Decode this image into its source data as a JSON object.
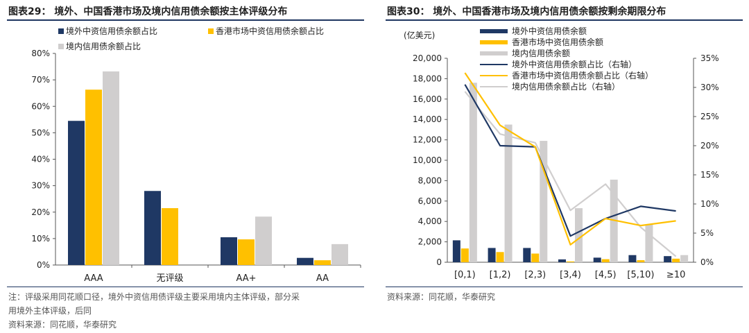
{
  "colors": {
    "navy": "#1f3864",
    "gold": "#ffc000",
    "gray": "#d0cece",
    "axis": "#555555",
    "rule": "#1e3560"
  },
  "left": {
    "title": "图表29： 境外、中国香港市场及境内信用债余额按主体评级分布",
    "note_line1": "注：评级采用同花顺口径，境外中资信用债评级主要采用境内主体评级，部分采",
    "note_line2": "用境外主体评级，后同",
    "source": "资料来源：同花顺，华泰研究"
  },
  "right": {
    "title": "图表30： 境外、中国香港市场及境内信用债余额按剩余期限分布",
    "source": "资料来源：同花顺，华泰研究"
  },
  "chart_data": [
    {
      "type": "bar",
      "title": "图表29： 境外、中国香港市场及境内信用债余额按主体评级分布",
      "categories": [
        "AAA",
        "无评级",
        "AA+",
        "AA"
      ],
      "series": [
        {
          "name": "境外中资信用债余额占比",
          "values": [
            54.5,
            28.0,
            10.5,
            2.7
          ]
        },
        {
          "name": "香港市场中资信用债余额占比",
          "values": [
            66.3,
            21.5,
            9.7,
            1.8
          ]
        },
        {
          "name": "境内信用债余额占比",
          "values": [
            73.2,
            0,
            18.3,
            7.9
          ]
        }
      ],
      "ylim": [
        0,
        80
      ],
      "yticks": [
        "0%",
        "10%",
        "20%",
        "30%",
        "40%",
        "50%",
        "60%",
        "70%",
        "80%"
      ],
      "legend_position": "top"
    },
    {
      "type": "bar+line",
      "title": "图表30： 境外、中国香港市场及境内信用债余额按剩余期限分布",
      "ylabel": "(亿美元)",
      "categories": [
        "[0,1)",
        "[1,2)",
        "[2,3)",
        "[3,4)",
        "[4,5)",
        "[5,10)",
        "≥10"
      ],
      "bar_series": [
        {
          "name": "境外中资信用债余额",
          "values": [
            2150,
            1400,
            1400,
            280,
            450,
            700,
            600
          ]
        },
        {
          "name": "香港市场中资信用债余额",
          "values": [
            1350,
            1000,
            850,
            80,
            300,
            200,
            350
          ]
        },
        {
          "name": "境内信用债余额",
          "values": [
            17600,
            13500,
            11900,
            5300,
            8100,
            3700,
            700
          ]
        }
      ],
      "line_series": [
        {
          "name": "境外中资信用债余额占比（右轴）",
          "values": [
            30.5,
            20.0,
            19.8,
            4.5,
            7.5,
            9.6,
            8.8
          ]
        },
        {
          "name": "香港市场中资信用债余额占比（右轴）",
          "values": [
            32.5,
            23.5,
            19.8,
            3.0,
            7.5,
            6.3,
            7.1
          ]
        },
        {
          "name": "境内信用债余额占比（右轴）",
          "values": [
            29.3,
            22.0,
            20.5,
            8.9,
            13.4,
            6.0,
            1.0
          ]
        }
      ],
      "ylim": [
        0,
        20000
      ],
      "yticks": [
        "0",
        "2,000",
        "4,000",
        "6,000",
        "8,000",
        "10,000",
        "12,000",
        "14,000",
        "16,000",
        "18,000",
        "20,000"
      ],
      "y2lim": [
        0,
        35
      ],
      "y2ticks": [
        "0%",
        "5%",
        "10%",
        "15%",
        "20%",
        "25%",
        "30%",
        "35%"
      ],
      "legend_position": "top"
    }
  ]
}
